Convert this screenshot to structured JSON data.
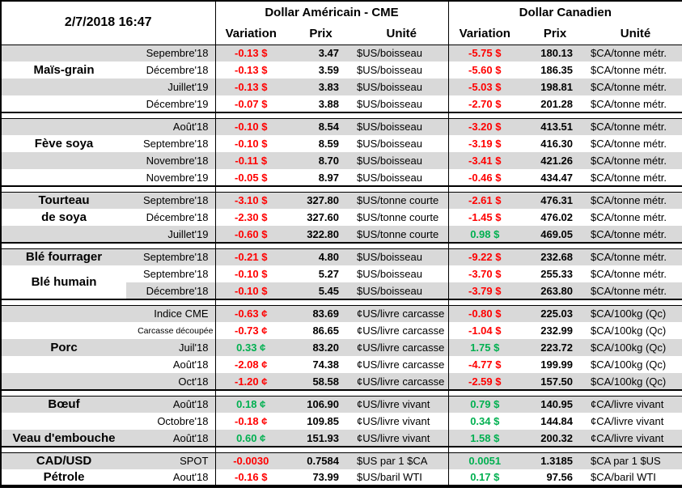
{
  "report": {
    "timestamp": "2/7/2018 16:47",
    "currency_headers": {
      "us": "Dollar Américain - CME",
      "ca": "Dollar Canadien"
    },
    "column_headers": {
      "variation": "Variation",
      "prix": "Prix",
      "unite": "Unité"
    },
    "colors": {
      "negative": "#FF0000",
      "positive": "#00B050",
      "stripe": "#D9D9D9",
      "border": "#000000"
    }
  },
  "sections": [
    {
      "id": "mais-grain",
      "rows": [
        {
          "contract": "Sepembre'18",
          "usVar": "-0.13 $",
          "usDir": "down",
          "usPrix": "3.47",
          "usUnit": "$US/boisseau",
          "caVar": "-5.75 $",
          "caDir": "down",
          "caPrix": "180.13",
          "caUnit": "$CA/tonne métr."
        },
        {
          "label": "Maïs-grain",
          "contract": "Décembre'18",
          "usVar": "-0.13 $",
          "usDir": "down",
          "usPrix": "3.59",
          "usUnit": "$US/boisseau",
          "caVar": "-5.60 $",
          "caDir": "down",
          "caPrix": "186.35",
          "caUnit": "$CA/tonne métr."
        },
        {
          "contract": "Juillet'19",
          "usVar": "-0.13 $",
          "usDir": "down",
          "usPrix": "3.83",
          "usUnit": "$US/boisseau",
          "caVar": "-5.03 $",
          "caDir": "down",
          "caPrix": "198.81",
          "caUnit": "$CA/tonne métr."
        },
        {
          "contract": "Décembre'19",
          "usVar": "-0.07 $",
          "usDir": "down",
          "usPrix": "3.88",
          "usUnit": "$US/boisseau",
          "caVar": "-2.70 $",
          "caDir": "down",
          "caPrix": "201.28",
          "caUnit": "$CA/tonne métr."
        }
      ]
    },
    {
      "id": "feve-soya",
      "rows": [
        {
          "contract": "Août'18",
          "usVar": "-0.10 $",
          "usDir": "down",
          "usPrix": "8.54",
          "usUnit": "$US/boisseau",
          "caVar": "-3.20 $",
          "caDir": "down",
          "caPrix": "413.51",
          "caUnit": "$CA/tonne métr."
        },
        {
          "label": "Fève soya",
          "contract": "Septembre'18",
          "usVar": "-0.10 $",
          "usDir": "down",
          "usPrix": "8.59",
          "usUnit": "$US/boisseau",
          "caVar": "-3.19 $",
          "caDir": "down",
          "caPrix": "416.30",
          "caUnit": "$CA/tonne métr."
        },
        {
          "contract": "Novembre'18",
          "usVar": "-0.11 $",
          "usDir": "down",
          "usPrix": "8.70",
          "usUnit": "$US/boisseau",
          "caVar": "-3.41 $",
          "caDir": "down",
          "caPrix": "421.26",
          "caUnit": "$CA/tonne métr."
        },
        {
          "contract": "Novembre'19",
          "usVar": "-0.05 $",
          "usDir": "down",
          "usPrix": "8.97",
          "usUnit": "$US/boisseau",
          "caVar": "-0.46 $",
          "caDir": "down",
          "caPrix": "434.47",
          "caUnit": "$CA/tonne métr."
        }
      ]
    },
    {
      "id": "tourteau-de-soya",
      "rows": [
        {
          "label": "Tourteau",
          "contract": "Septembre'18",
          "usVar": "-3.10 $",
          "usDir": "down",
          "usPrix": "327.80",
          "usUnit": "$US/tonne courte",
          "caVar": "-2.61 $",
          "caDir": "down",
          "caPrix": "476.31",
          "caUnit": "$CA/tonne métr."
        },
        {
          "label": "de soya",
          "contract": "Décembre'18",
          "usVar": "-2.30 $",
          "usDir": "down",
          "usPrix": "327.60",
          "usUnit": "$US/tonne courte",
          "caVar": "-1.45 $",
          "caDir": "down",
          "caPrix": "476.02",
          "caUnit": "$CA/tonne métr."
        },
        {
          "contract": "Juillet'19",
          "usVar": "-0.60 $",
          "usDir": "down",
          "usPrix": "322.80",
          "usUnit": "$US/tonne courte",
          "caVar": "0.98 $",
          "caDir": "up",
          "caPrix": "469.05",
          "caUnit": "$CA/tonne métr."
        }
      ]
    },
    {
      "id": "ble",
      "rows": [
        {
          "label": "Blé fourrager",
          "contract": "Septembre'18",
          "usVar": "-0.21 $",
          "usDir": "down",
          "usPrix": "4.80",
          "usUnit": "$US/boisseau",
          "caVar": "-9.22 $",
          "caDir": "down",
          "caPrix": "232.68",
          "caUnit": "$CA/tonne métr."
        },
        {
          "label": "Blé humain",
          "labelRowspan": 2,
          "contract": "Septembre'18",
          "usVar": "-0.10 $",
          "usDir": "down",
          "usPrix": "5.27",
          "usUnit": "$US/boisseau",
          "caVar": "-3.70 $",
          "caDir": "down",
          "caPrix": "255.33",
          "caUnit": "$CA/tonne métr."
        },
        {
          "labelOmit": true,
          "contract": "Décembre'18",
          "usVar": "-0.10 $",
          "usDir": "down",
          "usPrix": "5.45",
          "usUnit": "$US/boisseau",
          "caVar": "-3.79 $",
          "caDir": "down",
          "caPrix": "263.80",
          "caUnit": "$CA/tonne métr."
        }
      ]
    },
    {
      "id": "porc",
      "rows": [
        {
          "contract": "Indice CME",
          "usVar": "-0.63 ¢",
          "usDir": "down",
          "usPrix": "83.69",
          "usUnit": "¢US/livre carcasse",
          "caVar": "-0.80 $",
          "caDir": "down",
          "caPrix": "225.03",
          "caUnit": "$CA/100kg (Qc)"
        },
        {
          "contract": "Carcasse découpée",
          "small": true,
          "usVar": "-0.73 ¢",
          "usDir": "down",
          "usPrix": "86.65",
          "usUnit": "¢US/livre carcasse",
          "caVar": "-1.04 $",
          "caDir": "down",
          "caPrix": "232.99",
          "caUnit": "$CA/100kg (Qc)"
        },
        {
          "label": "Porc",
          "contract": "Juil'18",
          "usVar": "0.33 ¢",
          "usDir": "up",
          "usPrix": "83.20",
          "usUnit": "¢US/livre carcasse",
          "caVar": "1.75 $",
          "caDir": "up",
          "caPrix": "223.72",
          "caUnit": "$CA/100kg (Qc)"
        },
        {
          "contract": "Août'18",
          "usVar": "-2.08 ¢",
          "usDir": "down",
          "usPrix": "74.38",
          "usUnit": "¢US/livre carcasse",
          "caVar": "-4.77 $",
          "caDir": "down",
          "caPrix": "199.99",
          "caUnit": "$CA/100kg (Qc)"
        },
        {
          "contract": "Oct'18",
          "usVar": "-1.20 ¢",
          "usDir": "down",
          "usPrix": "58.58",
          "usUnit": "¢US/livre carcasse",
          "caVar": "-2.59 $",
          "caDir": "down",
          "caPrix": "157.50",
          "caUnit": "$CA/100kg (Qc)"
        }
      ]
    },
    {
      "id": "boeuf-veau",
      "rows": [
        {
          "label": "Bœuf",
          "contract": "Août'18",
          "usVar": "0.18 ¢",
          "usDir": "up",
          "usPrix": "106.90",
          "usUnit": "¢US/livre vivant",
          "caVar": "0.79 $",
          "caDir": "up",
          "caPrix": "140.95",
          "caUnit": "¢CA/livre vivant"
        },
        {
          "contract": "Octobre'18",
          "usVar": "-0.18 ¢",
          "usDir": "down",
          "usPrix": "109.85",
          "usUnit": "¢US/livre vivant",
          "caVar": "0.34 $",
          "caDir": "up",
          "caPrix": "144.84",
          "caUnit": "¢CA/livre vivant"
        },
        {
          "label": "Veau d'embouche",
          "contract": "Août'18",
          "usVar": "0.60 ¢",
          "usDir": "up",
          "usPrix": "151.93",
          "usUnit": "¢US/livre vivant",
          "caVar": "1.58 $",
          "caDir": "up",
          "caPrix": "200.32",
          "caUnit": "¢CA/livre vivant"
        }
      ]
    },
    {
      "id": "cad-usd-petrole",
      "rows": [
        {
          "label": "CAD/USD",
          "contract": "SPOT",
          "usVar": "-0.0030",
          "usDir": "down",
          "usPrix": "0.7584",
          "usUnit": "$US par 1 $CA",
          "caVar": "0.0051",
          "caDir": "up",
          "caPrix": "1.3185",
          "caUnit": "$CA par 1 $US"
        },
        {
          "label": "Pétrole",
          "contract": "Aout'18",
          "usVar": "-0.16 $",
          "usDir": "down",
          "usPrix": "73.99",
          "usUnit": "$US/baril WTI",
          "caVar": "0.17 $",
          "caDir": "up",
          "caPrix": "97.56",
          "caUnit": "$CA/baril WTI"
        }
      ]
    }
  ]
}
